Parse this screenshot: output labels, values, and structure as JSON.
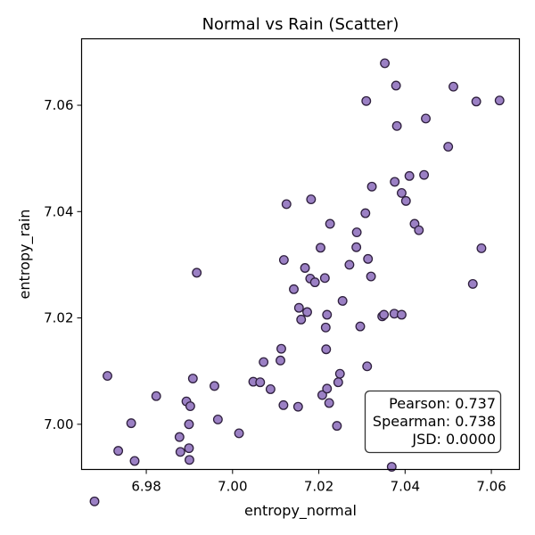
{
  "chart_data": {
    "type": "scatter",
    "title": "Normal vs Rain (Scatter)",
    "xlabel": "entropy_normal",
    "ylabel": "entropy_rain",
    "xlim": [
      6.965,
      7.0665
    ],
    "ylim": [
      6.9915,
      7.0725
    ],
    "xticks": [
      6.98,
      7.0,
      7.02,
      7.04,
      7.06
    ],
    "yticks": [
      7.0,
      7.02,
      7.04,
      7.06
    ],
    "xtick_labels": [
      "6.98",
      "7.00",
      "7.02",
      "7.04",
      "7.06"
    ],
    "ytick_labels": [
      "7.00",
      "7.02",
      "7.04",
      "7.06"
    ],
    "grid": false,
    "marker_color": "#9b80c4",
    "marker_edge_color": "#2e1f3d",
    "points": [
      [
        6.968,
        6.9855
      ],
      [
        6.971,
        7.0091
      ],
      [
        6.9735,
        6.995
      ],
      [
        6.9765,
        7.0002
      ],
      [
        6.9773,
        6.9931
      ],
      [
        6.9823,
        7.0053
      ],
      [
        6.9877,
        6.9976
      ],
      [
        6.9879,
        6.9948
      ],
      [
        6.9893,
        7.0043
      ],
      [
        6.9899,
        6.9955
      ],
      [
        6.9899,
        7.0
      ],
      [
        6.99,
        6.9933
      ],
      [
        6.9902,
        7.0034
      ],
      [
        6.9908,
        7.0086
      ],
      [
        6.9917,
        7.0285
      ],
      [
        6.9958,
        7.0072
      ],
      [
        6.9966,
        7.0009
      ],
      [
        7.0015,
        6.9983
      ],
      [
        7.0048,
        7.008
      ],
      [
        7.0064,
        7.0079
      ],
      [
        7.0072,
        7.0117
      ],
      [
        7.0088,
        7.0066
      ],
      [
        7.0111,
        7.012
      ],
      [
        7.0113,
        7.0142
      ],
      [
        7.0118,
        7.0036
      ],
      [
        7.0119,
        7.0309
      ],
      [
        7.0125,
        7.0414
      ],
      [
        7.0142,
        7.0254
      ],
      [
        7.0152,
        7.0033
      ],
      [
        7.0154,
        7.0219
      ],
      [
        7.0159,
        7.0197
      ],
      [
        7.0168,
        7.0294
      ],
      [
        7.0173,
        7.0211
      ],
      [
        7.018,
        7.0274
      ],
      [
        7.0182,
        7.0423
      ],
      [
        7.0191,
        7.0267
      ],
      [
        7.0204,
        7.0332
      ],
      [
        7.0208,
        7.0055
      ],
      [
        7.0214,
        7.0275
      ],
      [
        7.0216,
        7.0182
      ],
      [
        7.0217,
        7.0141
      ],
      [
        7.0219,
        7.0206
      ],
      [
        7.0219,
        7.0067
      ],
      [
        7.0224,
        7.004
      ],
      [
        7.0226,
        7.0377
      ],
      [
        7.0242,
        6.9997
      ],
      [
        7.0245,
        7.0079
      ],
      [
        7.0249,
        7.0095
      ],
      [
        7.0255,
        7.0232
      ],
      [
        7.0271,
        7.03
      ],
      [
        7.0287,
        7.0333
      ],
      [
        7.0288,
        7.0361
      ],
      [
        7.0296,
        7.0184
      ],
      [
        7.0308,
        7.0397
      ],
      [
        7.031,
        7.0608
      ],
      [
        7.0312,
        7.0109
      ],
      [
        7.0314,
        7.0311
      ],
      [
        7.0321,
        7.0278
      ],
      [
        7.0323,
        7.0447
      ],
      [
        7.0347,
        7.0203
      ],
      [
        7.0351,
        7.0206
      ],
      [
        7.0353,
        7.0679
      ],
      [
        7.0369,
        6.992
      ],
      [
        7.0375,
        7.0208
      ],
      [
        7.0376,
        7.0456
      ],
      [
        7.0379,
        7.0637
      ],
      [
        7.0381,
        7.0561
      ],
      [
        7.0392,
        7.0206
      ],
      [
        7.0392,
        7.0435
      ],
      [
        7.0402,
        7.042
      ],
      [
        7.041,
        7.0467
      ],
      [
        7.0422,
        7.0377
      ],
      [
        7.0432,
        7.0365
      ],
      [
        7.0444,
        7.0469
      ],
      [
        7.0448,
        7.0575
      ],
      [
        7.05,
        7.0522
      ],
      [
        7.0512,
        7.0635
      ],
      [
        7.0557,
        7.0264
      ],
      [
        7.0565,
        7.0607
      ],
      [
        7.0577,
        7.0331
      ],
      [
        7.0619,
        7.0609
      ]
    ],
    "annotations": {
      "pearson": "Pearson: 0.737",
      "spearman": "Spearman: 0.738",
      "jsd": "JSD: 0.0000"
    }
  }
}
